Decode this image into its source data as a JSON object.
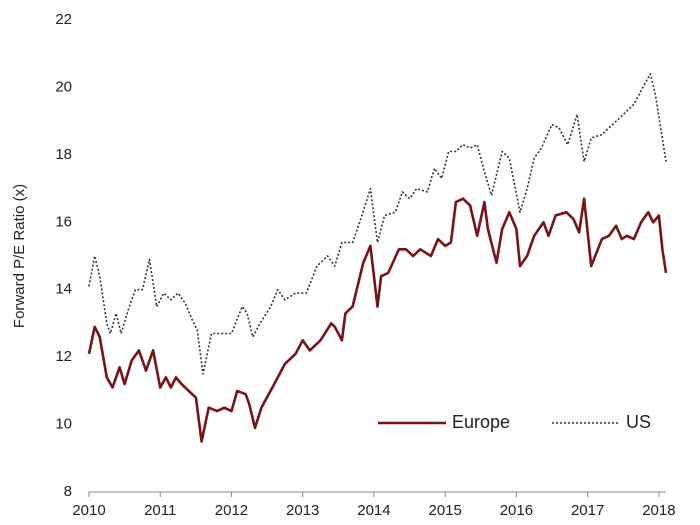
{
  "chart_data": {
    "type": "line",
    "ylabel": "Forward P/E Ratio (x)",
    "xlim": [
      2010,
      2018.1
    ],
    "xticks": [
      2010,
      2011,
      2012,
      2013,
      2014,
      2015,
      2016,
      2017,
      2018
    ],
    "ylim": [
      8,
      22
    ],
    "yticks": [
      8,
      10,
      12,
      14,
      16,
      18,
      20,
      22
    ],
    "grid": false,
    "legend": "lower right",
    "series": [
      {
        "name": "Europe",
        "color": "#7a1315",
        "style": "solid",
        "x": [
          2010.0,
          2010.08,
          2010.15,
          2010.25,
          2010.33,
          2010.43,
          2010.5,
          2010.6,
          2010.7,
          2010.8,
          2010.9,
          2011.0,
          2011.08,
          2011.15,
          2011.22,
          2011.3,
          2011.4,
          2011.5,
          2011.58,
          2011.68,
          2011.8,
          2011.9,
          2012.0,
          2012.08,
          2012.2,
          2012.25,
          2012.33,
          2012.42,
          2012.6,
          2012.75,
          2012.9,
          2013.0,
          2013.1,
          2013.25,
          2013.4,
          2013.45,
          2013.55,
          2013.6,
          2013.7,
          2013.85,
          2013.95,
          2014.05,
          2014.1,
          2014.2,
          2014.35,
          2014.45,
          2014.55,
          2014.65,
          2014.8,
          2014.9,
          2015.0,
          2015.08,
          2015.15,
          2015.25,
          2015.35,
          2015.45,
          2015.55,
          2015.6,
          2015.72,
          2015.8,
          2015.9,
          2016.0,
          2016.05,
          2016.15,
          2016.25,
          2016.38,
          2016.45,
          2016.55,
          2016.7,
          2016.8,
          2016.88,
          2016.95,
          2017.05,
          2017.2,
          2017.3,
          2017.4,
          2017.48,
          2017.55,
          2017.65,
          2017.75,
          2017.85,
          2017.92,
          2018.0,
          2018.05,
          2018.1
        ],
        "values": [
          12.1,
          12.9,
          12.6,
          11.4,
          11.1,
          11.7,
          11.2,
          11.9,
          12.2,
          11.6,
          12.2,
          11.1,
          11.4,
          11.1,
          11.4,
          11.2,
          11.0,
          10.8,
          9.5,
          10.5,
          10.4,
          10.5,
          10.4,
          11.0,
          10.9,
          10.6,
          9.9,
          10.5,
          11.2,
          11.8,
          12.1,
          12.5,
          12.2,
          12.5,
          13.0,
          12.9,
          12.5,
          13.3,
          13.5,
          14.8,
          15.3,
          13.5,
          14.4,
          14.5,
          15.2,
          15.2,
          15.0,
          15.2,
          15.0,
          15.5,
          15.3,
          15.4,
          16.6,
          16.7,
          16.5,
          15.6,
          16.6,
          15.8,
          14.8,
          15.8,
          16.3,
          15.8,
          14.7,
          15.0,
          15.6,
          16.0,
          15.6,
          16.2,
          16.3,
          16.1,
          15.7,
          16.7,
          14.7,
          15.5,
          15.6,
          15.9,
          15.5,
          15.6,
          15.5,
          16.0,
          16.3,
          16.0,
          16.2,
          15.2,
          14.5
        ]
      },
      {
        "name": "US",
        "color": "#333333",
        "style": "dotted",
        "x": [
          2010.0,
          2010.08,
          2010.15,
          2010.25,
          2010.3,
          2010.38,
          2010.45,
          2010.55,
          2010.65,
          2010.75,
          2010.85,
          2010.95,
          2011.05,
          2011.15,
          2011.25,
          2011.35,
          2011.45,
          2011.52,
          2011.6,
          2011.72,
          2011.85,
          2012.0,
          2012.15,
          2012.22,
          2012.3,
          2012.4,
          2012.55,
          2012.65,
          2012.75,
          2012.9,
          2013.05,
          2013.2,
          2013.35,
          2013.45,
          2013.55,
          2013.7,
          2013.8,
          2013.95,
          2014.05,
          2014.15,
          2014.3,
          2014.4,
          2014.5,
          2014.6,
          2014.75,
          2014.85,
          2014.95,
          2015.05,
          2015.15,
          2015.25,
          2015.35,
          2015.45,
          2015.55,
          2015.65,
          2015.8,
          2015.9,
          2016.05,
          2016.15,
          2016.25,
          2016.35,
          2016.5,
          2016.6,
          2016.72,
          2016.85,
          2016.95,
          2017.05,
          2017.2,
          2017.35,
          2017.5,
          2017.65,
          2017.8,
          2017.88,
          2017.95,
          2018.1
        ],
        "values": [
          14.1,
          15.0,
          14.4,
          13.0,
          12.7,
          13.3,
          12.7,
          13.4,
          14.0,
          14.0,
          14.9,
          13.5,
          13.9,
          13.7,
          13.9,
          13.6,
          13.1,
          12.8,
          11.5,
          12.7,
          12.7,
          12.7,
          13.5,
          13.3,
          12.6,
          13.0,
          13.5,
          14.0,
          13.7,
          13.9,
          13.9,
          14.7,
          15.0,
          14.7,
          15.4,
          15.4,
          16.0,
          17.0,
          15.4,
          16.2,
          16.3,
          16.9,
          16.7,
          17.0,
          16.9,
          17.6,
          17.3,
          18.1,
          18.1,
          18.3,
          18.2,
          18.3,
          17.5,
          16.8,
          18.1,
          17.9,
          16.3,
          17.0,
          17.9,
          18.2,
          18.9,
          18.8,
          18.3,
          19.2,
          17.8,
          18.5,
          18.6,
          18.9,
          19.2,
          19.5,
          20.1,
          20.4,
          19.8,
          17.8
        ]
      }
    ]
  }
}
